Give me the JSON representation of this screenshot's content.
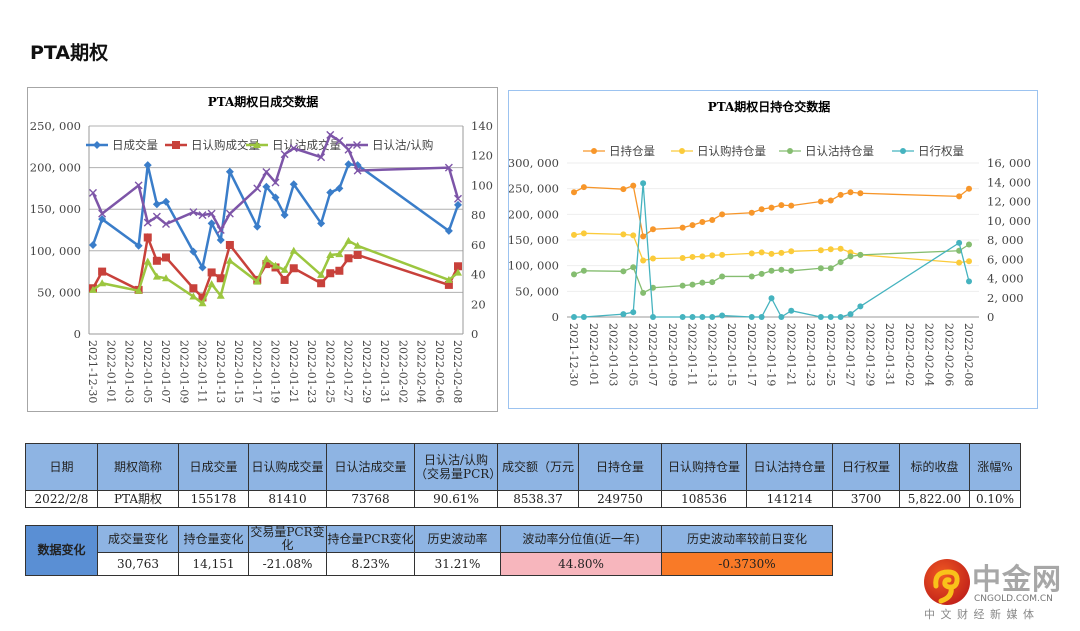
{
  "page_title": "PTA期权",
  "chart_data": [
    {
      "type": "line",
      "title": "PTA期权日成交数据",
      "x_ticks": [
        "2021-12-30",
        "2022-01-01",
        "2022-01-03",
        "2022-01-05",
        "2022-01-07",
        "2022-01-09",
        "2022-01-11",
        "2022-01-13",
        "2022-01-15",
        "2022-01-17",
        "2022-01-19",
        "2022-01-21",
        "2022-01-23",
        "2022-01-25",
        "2022-01-27",
        "2022-01-29",
        "2022-01-31",
        "2022-02-02",
        "2022-02-04",
        "2022-02-06",
        "2022-02-08"
      ],
      "x": [
        "2021-12-30",
        "2021-12-31",
        "2022-01-04",
        "2022-01-05",
        "2022-01-06",
        "2022-01-07",
        "2022-01-10",
        "2022-01-11",
        "2022-01-12",
        "2022-01-13",
        "2022-01-14",
        "2022-01-17",
        "2022-01-18",
        "2022-01-19",
        "2022-01-20",
        "2022-01-21",
        "2022-01-24",
        "2022-01-25",
        "2022-01-26",
        "2022-01-27",
        "2022-01-28",
        "2022-02-07",
        "2022-02-08"
      ],
      "y_left": {
        "range": [
          0,
          250000
        ],
        "ticks": [
          "0",
          "50, 000",
          "100, 000",
          "150, 000",
          "200, 000",
          "250, 000"
        ]
      },
      "y_right": {
        "range": [
          0,
          140
        ],
        "ticks": [
          "0",
          "20",
          "40",
          "60",
          "80",
          "100",
          "120",
          "140"
        ]
      },
      "series": [
        {
          "name": "日成交量",
          "axis": "left",
          "color": "#3a7dc9",
          "marker": "diamond",
          "values": [
            107000,
            138000,
            106000,
            203000,
            156000,
            159000,
            99000,
            80000,
            133000,
            113000,
            195000,
            129000,
            177000,
            164000,
            143000,
            180000,
            133000,
            170000,
            175000,
            204000,
            203000,
            124000,
            155178
          ]
        },
        {
          "name": "日认购成交量",
          "axis": "left",
          "color": "#c8413b",
          "marker": "square",
          "values": [
            55000,
            75000,
            53000,
            116000,
            88000,
            92000,
            55000,
            44000,
            74000,
            67000,
            107000,
            65000,
            84000,
            80000,
            65000,
            79000,
            61000,
            73000,
            76000,
            91000,
            95000,
            59000,
            81410
          ]
        },
        {
          "name": "日认沽成交量",
          "axis": "left",
          "color": "#9cc63f",
          "marker": "triangle",
          "values": [
            53000,
            61000,
            52000,
            87000,
            69000,
            67000,
            45000,
            37000,
            60000,
            46000,
            88000,
            63000,
            90000,
            82000,
            77000,
            100000,
            71000,
            95000,
            96000,
            112000,
            106000,
            65000,
            73768
          ]
        },
        {
          "name": "日认沽/认购",
          "axis": "right",
          "color": "#7d55a8",
          "marker": "x",
          "values": [
            95,
            81,
            100,
            75,
            79,
            74,
            82,
            80,
            81,
            70,
            81,
            98,
            109,
            102,
            121,
            125,
            119,
            134,
            130,
            124,
            110,
            112,
            91
          ]
        }
      ],
      "grid": true,
      "legend": "top"
    },
    {
      "type": "line",
      "title": "PTA期权日持仓交数据",
      "x_ticks": [
        "2021-12-30",
        "2022-01-01",
        "2022-01-03",
        "2022-01-05",
        "2022-01-07",
        "2022-01-09",
        "2022-01-11",
        "2022-01-13",
        "2022-01-15",
        "2022-01-17",
        "2022-01-19",
        "2022-01-21",
        "2022-01-23",
        "2022-01-25",
        "2022-01-27",
        "2022-01-29",
        "2022-01-31",
        "2022-02-02",
        "2022-02-04",
        "2022-02-06",
        "2022-02-08"
      ],
      "x": [
        "2021-12-30",
        "2021-12-31",
        "2022-01-04",
        "2022-01-05",
        "2022-01-06",
        "2022-01-07",
        "2022-01-10",
        "2022-01-11",
        "2022-01-12",
        "2022-01-13",
        "2022-01-14",
        "2022-01-17",
        "2022-01-18",
        "2022-01-19",
        "2022-01-20",
        "2022-01-21",
        "2022-01-24",
        "2022-01-25",
        "2022-01-26",
        "2022-01-27",
        "2022-01-28",
        "2022-02-07",
        "2022-02-08"
      ],
      "y_left": {
        "range": [
          0,
          300000
        ],
        "ticks": [
          "0",
          "50, 000",
          "100, 000",
          "150, 000",
          "200, 000",
          "250, 000",
          "300, 000"
        ]
      },
      "y_right": {
        "range": [
          0,
          16000
        ],
        "ticks": [
          "0",
          "2, 000",
          "4, 000",
          "6, 000",
          "8, 000",
          "10, 000",
          "12, 000",
          "14, 000",
          "16, 000"
        ]
      },
      "series": [
        {
          "name": "日持仓量",
          "axis": "left",
          "color": "#f7962a",
          "marker": "circle",
          "values": [
            243000,
            253000,
            249000,
            256000,
            157000,
            171000,
            174000,
            179000,
            185000,
            189000,
            200000,
            203000,
            210000,
            213000,
            218000,
            217000,
            225000,
            227000,
            238000,
            243000,
            241000,
            235000,
            249750
          ]
        },
        {
          "name": "日认购持仓量",
          "axis": "left",
          "color": "#fbcb3a",
          "marker": "circle",
          "values": [
            160000,
            163000,
            161000,
            159000,
            110000,
            114000,
            115000,
            117000,
            118000,
            120000,
            121000,
            124000,
            126000,
            123000,
            125000,
            128000,
            130000,
            132000,
            133000,
            126000,
            121000,
            106000,
            108536
          ]
        },
        {
          "name": "日认沽持仓量",
          "axis": "left",
          "color": "#85bd70",
          "marker": "circle",
          "values": [
            83000,
            90000,
            89000,
            97000,
            47000,
            57000,
            61000,
            63000,
            67000,
            68000,
            79000,
            79000,
            84000,
            90000,
            92000,
            90000,
            95000,
            95000,
            107000,
            118000,
            121000,
            129000,
            141214
          ]
        },
        {
          "name": "日行权量",
          "axis": "right",
          "color": "#45b3bf",
          "marker": "circle",
          "values": [
            0,
            0,
            300,
            500,
            13900,
            0,
            0,
            0,
            0,
            0,
            150,
            0,
            0,
            1950,
            0,
            650,
            0,
            0,
            0,
            300,
            1100,
            7700,
            3700
          ]
        }
      ],
      "grid": true,
      "legend": "top"
    }
  ],
  "table1": {
    "headers": [
      "日期",
      "期权简称",
      "日成交量",
      "日认购成交量",
      "日认沽成交量",
      "日认沽/认购（交易量PCR）",
      "成交额（万元",
      "日持仓量",
      "日认购持仓量",
      "日认沽持仓量",
      "日行权量",
      "标的收盘",
      "涨幅%"
    ],
    "row": [
      "2022/2/8",
      "PTA期权",
      "155178",
      "81410",
      "73768",
      "90.61%",
      "8538.37",
      "249750",
      "108536",
      "141214",
      "3700",
      "5,822.00",
      "0.10%"
    ]
  },
  "table2": {
    "label": "数据变化",
    "headers": [
      "成交量变化",
      "持仓量变化",
      "交易量PCR变化",
      "持仓量PCR变化",
      "历史波动率",
      "波动率分位值(近一年)",
      "历史波动率较前日变化"
    ],
    "row": [
      "30,763",
      "14,151",
      "-21.08%",
      "8.23%",
      "31.21%",
      "44.80%",
      "-0.3730%"
    ]
  },
  "logo": {
    "name": "中金网",
    "domain": "CNGOLD.COM.CN",
    "slogan": "中 文 财 经 新 媒 体"
  },
  "colors": {
    "header": "#8eb4e3",
    "label": "#5a8fd4",
    "pink": "#f7b6bd",
    "orange": "#f97a27"
  }
}
